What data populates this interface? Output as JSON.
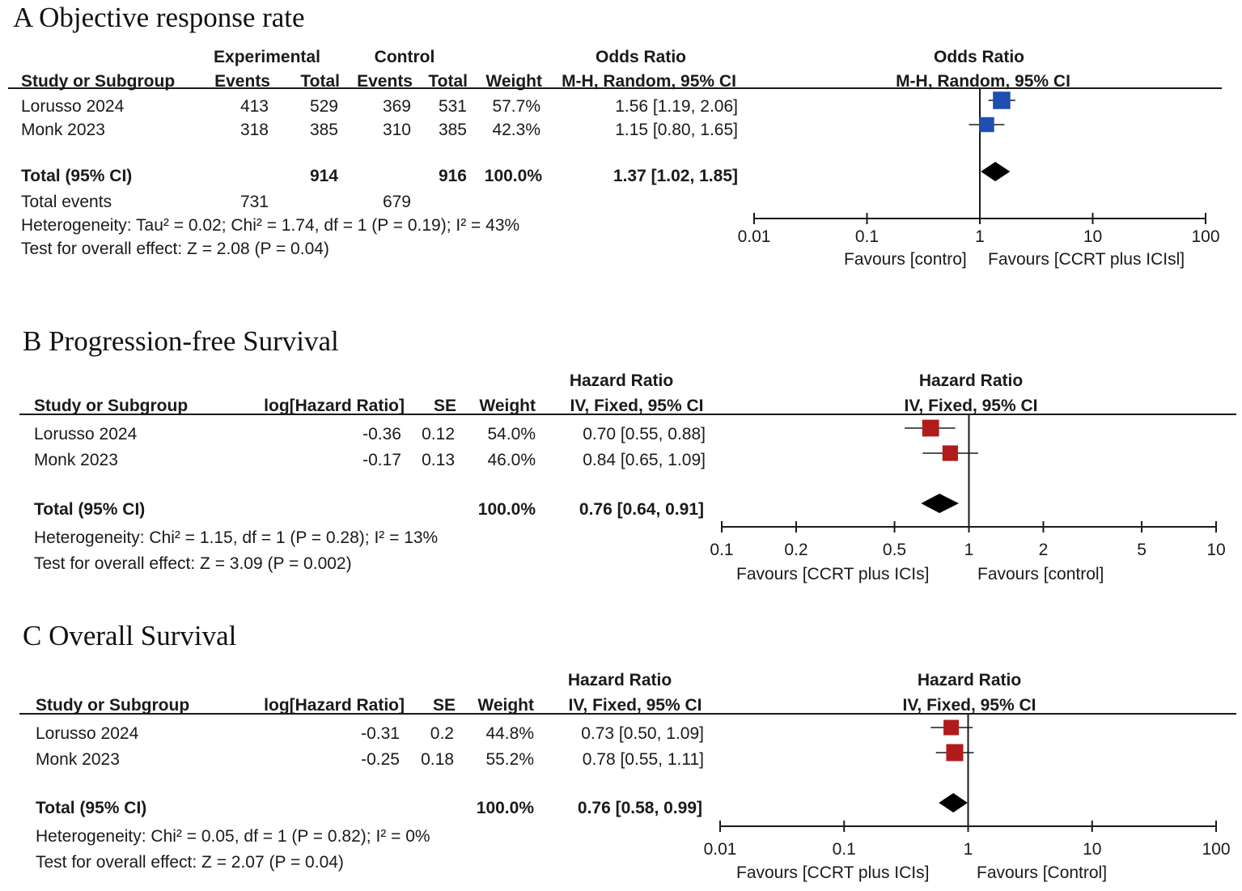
{
  "panels": {
    "a": {
      "title": "A Objective response rate",
      "exp_group": "Experimental",
      "ctrl_group": "Control",
      "col_study": "Study or Subgroup",
      "col_events": "Events",
      "col_total": "Total",
      "col_weight": "Weight",
      "col_effect_title": "Odds Ratio",
      "col_effect_method": "M-H, Random, 95% CI",
      "plot_title": "Odds Ratio",
      "plot_method": "M-H, Random, 95% CI",
      "rows": [
        {
          "study": "Lorusso 2024",
          "exp_events": "413",
          "exp_total": "529",
          "ctrl_events": "369",
          "ctrl_total": "531",
          "weight": "57.7%",
          "ci_text": "1.56 [1.19, 2.06]"
        },
        {
          "study": "Monk  2023",
          "exp_events": "318",
          "exp_total": "385",
          "ctrl_events": "310",
          "ctrl_total": "385",
          "weight": "42.3%",
          "ci_text": "1.15 [0.80, 1.65]"
        }
      ],
      "total": {
        "label": "Total (95% CI)",
        "exp_total": "914",
        "ctrl_total": "916",
        "weight": "100.0%",
        "ci_text": "1.37 [1.02, 1.85]"
      },
      "total_events": {
        "label": "Total events",
        "exp": "731",
        "ctrl": "679"
      },
      "heterogeneity": "Heterogeneity: Tau² = 0.02; Chi² = 1.74, df = 1 (P = 0.19); I² = 43%",
      "overall": "Test for overall effect: Z = 2.08 (P = 0.04)",
      "favours_left": "Favours [contro]",
      "favours_right": "Favours [CCRT plus ICIsl]",
      "ticks": [
        "0.01",
        "0.1",
        "1",
        "10",
        "100"
      ]
    },
    "b": {
      "title": "B Progression-free Survival",
      "col_study": "Study or Subgroup",
      "col_loghr": "log[Hazard Ratio]",
      "col_se": "SE",
      "col_weight": "Weight",
      "col_effect_title": "Hazard Ratio",
      "col_effect_method": "IV, Fixed, 95% CI",
      "plot_title": "Hazard Ratio",
      "plot_method": "IV, Fixed, 95% CI",
      "rows": [
        {
          "study": "Lorusso 2024",
          "loghr": "-0.36",
          "se": "0.12",
          "weight": "54.0%",
          "ci_text": "0.70 [0.55, 0.88]"
        },
        {
          "study": "Monk  2023",
          "loghr": "-0.17",
          "se": "0.13",
          "weight": "46.0%",
          "ci_text": "0.84 [0.65, 1.09]"
        }
      ],
      "total": {
        "label": "Total (95% CI)",
        "weight": "100.0%",
        "ci_text": "0.76 [0.64, 0.91]"
      },
      "heterogeneity": "Heterogeneity: Chi² = 1.15, df = 1 (P = 0.28); I² = 13%",
      "overall": "Test for overall effect: Z = 3.09 (P = 0.002)",
      "favours_left": "Favours [CCRT plus ICIs]",
      "favours_right": "Favours [control]",
      "ticks": [
        "0.1",
        "0.2",
        "0.5",
        "1",
        "2",
        "5",
        "10"
      ]
    },
    "c": {
      "title": "C Overall  Survival",
      "col_study": "Study or Subgroup",
      "col_loghr": "log[Hazard Ratio]",
      "col_se": "SE",
      "col_weight": "Weight",
      "col_effect_title": "Hazard Ratio",
      "col_effect_method": "IV, Fixed, 95% CI",
      "plot_title": "Hazard Ratio",
      "plot_method": "IV, Fixed, 95% CI",
      "rows": [
        {
          "study": "Lorusso 2024",
          "loghr": "-0.31",
          "se": "0.2",
          "weight": "44.8%",
          "ci_text": "0.73 [0.50, 1.09]"
        },
        {
          "study": "Monk  2023",
          "loghr": "-0.25",
          "se": "0.18",
          "weight": "55.2%",
          "ci_text": "0.78 [0.55, 1.11]"
        }
      ],
      "total": {
        "label": "Total (95% CI)",
        "weight": "100.0%",
        "ci_text": "0.76 [0.58, 0.99]"
      },
      "heterogeneity": "Heterogeneity: Chi² = 0.05, df = 1 (P = 0.82); I² = 0%",
      "overall": "Test for overall effect: Z = 2.07 (P = 0.04)",
      "favours_left": "Favours [CCRT plus ICIs]",
      "favours_right": "Favours [Control]",
      "ticks": [
        "0.01",
        "0.1",
        "1",
        "10",
        "100"
      ]
    }
  },
  "chart_data": [
    {
      "type": "forest",
      "title": "A Objective response rate",
      "measure": "Odds Ratio",
      "scale": "log",
      "xlim": [
        0.01,
        100
      ],
      "marker_color": "#1f4fb0",
      "studies": [
        {
          "name": "Lorusso 2024",
          "estimate": 1.56,
          "ci": [
            1.19,
            2.06
          ],
          "weight": 57.7
        },
        {
          "name": "Monk  2023",
          "estimate": 1.15,
          "ci": [
            0.8,
            1.65
          ],
          "weight": 42.3
        }
      ],
      "pooled": {
        "estimate": 1.37,
        "ci": [
          1.02,
          1.85
        ]
      }
    },
    {
      "type": "forest",
      "title": "B Progression-free Survival",
      "measure": "Hazard Ratio",
      "scale": "log",
      "xlim": [
        0.1,
        10
      ],
      "marker_color": "#b01c1c",
      "studies": [
        {
          "name": "Lorusso 2024",
          "estimate": 0.7,
          "ci": [
            0.55,
            0.88
          ],
          "weight": 54.0
        },
        {
          "name": "Monk  2023",
          "estimate": 0.84,
          "ci": [
            0.65,
            1.09
          ],
          "weight": 46.0
        }
      ],
      "pooled": {
        "estimate": 0.76,
        "ci": [
          0.64,
          0.91
        ]
      }
    },
    {
      "type": "forest",
      "title": "C Overall  Survival",
      "measure": "Hazard Ratio",
      "scale": "log",
      "xlim": [
        0.01,
        100
      ],
      "marker_color": "#b01c1c",
      "studies": [
        {
          "name": "Lorusso 2024",
          "estimate": 0.73,
          "ci": [
            0.5,
            1.09
          ],
          "weight": 44.8
        },
        {
          "name": "Monk  2023",
          "estimate": 0.78,
          "ci": [
            0.55,
            1.11
          ],
          "weight": 55.2
        }
      ],
      "pooled": {
        "estimate": 0.76,
        "ci": [
          0.58,
          0.99
        ]
      }
    }
  ]
}
